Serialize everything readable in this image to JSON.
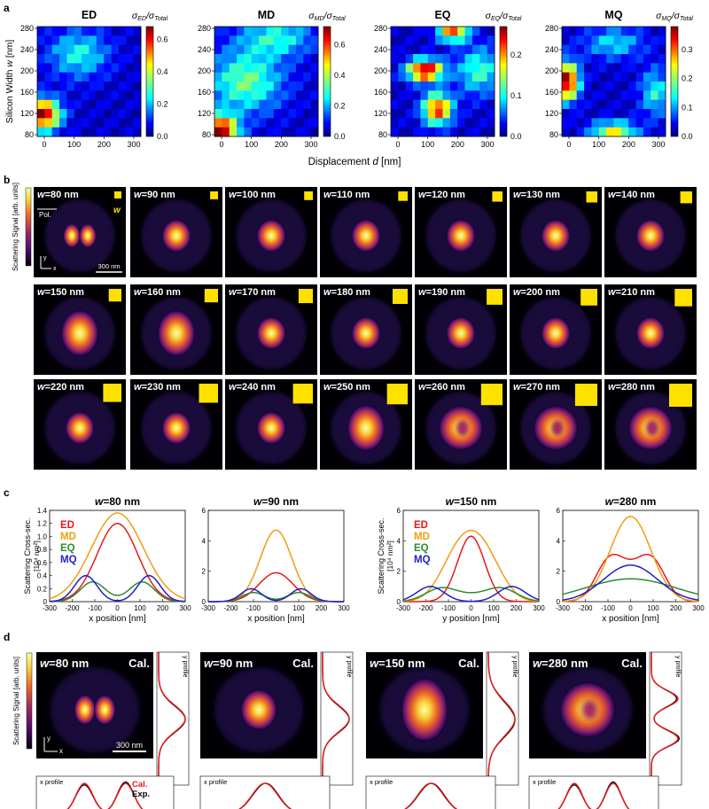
{
  "panel_labels": [
    "a",
    "b",
    "c",
    "d"
  ],
  "cmap": [
    "#00007f",
    "#0000ff",
    "#007fff",
    "#00ffff",
    "#7fff7f",
    "#ffff00",
    "#ff7f00",
    "#ff0000",
    "#7f0000"
  ],
  "inferno": [
    "#000004",
    "#1b0c41",
    "#4a0c6b",
    "#781c6d",
    "#a52c60",
    "#cf4446",
    "#ed6925",
    "#fb9b06",
    "#f7d13d",
    "#fcffa4"
  ],
  "chart_data": [
    {
      "type": "heatmap",
      "panel": "a",
      "title": "ED",
      "colorbar_label_main": "σ",
      "colorbar_label_sub": "ED",
      "colorbar_label_tail": "/σ",
      "colorbar_label_tail_sub": "Total",
      "colorbar_ticks": [
        "0.6",
        "0.4",
        "0.2",
        "0.0"
      ],
      "colorbar_tick_values": [
        0.6,
        0.4,
        0.2,
        0.0
      ],
      "vmax": 0.68,
      "x_ticks": [
        "0",
        "100",
        "200",
        "300"
      ],
      "y_ticks": [
        "80",
        "120",
        "160",
        "200",
        "240",
        "280"
      ],
      "peaks": [
        {
          "d": 0.05,
          "w": 0.2,
          "amp": 1.0,
          "sx": 0.12,
          "sy": 0.1
        },
        {
          "d": 0.4,
          "w": 0.75,
          "amp": 0.35,
          "sx": 0.2,
          "sy": 0.15
        }
      ]
    },
    {
      "type": "heatmap",
      "panel": "a",
      "title": "MD",
      "colorbar_label_main": "σ",
      "colorbar_label_sub": "MD",
      "colorbar_label_tail": "/σ",
      "colorbar_label_tail_sub": "Total",
      "colorbar_ticks": [
        "0.6",
        "0.4",
        "0.2",
        "0.0"
      ],
      "colorbar_tick_values": [
        0.6,
        0.4,
        0.2,
        0.0
      ],
      "vmax": 0.72,
      "x_ticks": [
        "0",
        "100",
        "200",
        "300"
      ],
      "y_ticks": [
        "80",
        "120",
        "160",
        "200",
        "240",
        "280"
      ],
      "peaks": [
        {
          "d": 0.05,
          "w": 0.05,
          "amp": 1.0,
          "sx": 0.12,
          "sy": 0.1
        },
        {
          "d": 0.3,
          "w": 0.5,
          "amp": 0.45,
          "sx": 0.25,
          "sy": 0.2
        },
        {
          "d": 0.6,
          "w": 0.9,
          "amp": 0.35,
          "sx": 0.25,
          "sy": 0.12
        }
      ]
    },
    {
      "type": "heatmap",
      "panel": "a",
      "title": "EQ",
      "colorbar_label_main": "σ",
      "colorbar_label_sub": "EQ",
      "colorbar_label_tail": "/σ",
      "colorbar_label_tail_sub": "Total",
      "colorbar_ticks": [
        "0.2",
        "0.1",
        "0.0"
      ],
      "colorbar_tick_values": [
        0.2,
        0.1,
        0.0
      ],
      "vmax": 0.27,
      "x_ticks": [
        "0",
        "100",
        "200",
        "300"
      ],
      "y_ticks": [
        "80",
        "120",
        "160",
        "200",
        "240",
        "280"
      ],
      "peaks": [
        {
          "d": 0.33,
          "w": 0.6,
          "amp": 1.0,
          "sx": 0.12,
          "sy": 0.07
        },
        {
          "d": 0.45,
          "w": 0.25,
          "amp": 0.85,
          "sx": 0.1,
          "sy": 0.1
        },
        {
          "d": 0.6,
          "w": 0.95,
          "amp": 0.8,
          "sx": 0.1,
          "sy": 0.06
        },
        {
          "d": 0.85,
          "w": 0.6,
          "amp": 0.4,
          "sx": 0.15,
          "sy": 0.15
        }
      ]
    },
    {
      "type": "heatmap",
      "panel": "a",
      "title": "MQ",
      "colorbar_label_main": "σ",
      "colorbar_label_sub": "MQ",
      "colorbar_label_tail": "/σ",
      "colorbar_label_tail_sub": "Total",
      "colorbar_ticks": [
        "0.3",
        "0.2",
        "0.1",
        "0.0"
      ],
      "colorbar_tick_values": [
        0.3,
        0.2,
        0.1,
        0.0
      ],
      "vmax": 0.38,
      "x_ticks": [
        "0",
        "100",
        "200",
        "300"
      ],
      "y_ticks": [
        "80",
        "120",
        "160",
        "200",
        "240",
        "280"
      ],
      "peaks": [
        {
          "d": 0.05,
          "w": 0.5,
          "amp": 1.0,
          "sx": 0.08,
          "sy": 0.12
        },
        {
          "d": 0.5,
          "w": 0.05,
          "amp": 0.6,
          "sx": 0.15,
          "sy": 0.06
        },
        {
          "d": 0.9,
          "w": 0.4,
          "amp": 0.35,
          "sx": 0.1,
          "sy": 0.15
        },
        {
          "d": 0.5,
          "w": 0.85,
          "amp": 0.3,
          "sx": 0.2,
          "sy": 0.1
        }
      ]
    }
  ],
  "panel_a": {
    "ylabel_main": "Silicon Width ",
    "ylabel_var": "w",
    "ylabel_unit": " [nm]",
    "xlabel_main": "Displacement ",
    "xlabel_var": "d",
    "xlabel_unit": " [nm]"
  },
  "panel_b": {
    "colorbar_label": "Scattering Signal [arb. units]",
    "pol_label": "Pol.",
    "w_label": "w",
    "axis_y": "y",
    "axis_x": "x",
    "scale_label": "300 nm",
    "w_prefix": "w",
    "tiles": [
      {
        "w": "=80 nm",
        "type": "dimer"
      },
      {
        "w": "=90 nm",
        "type": "spot"
      },
      {
        "w": "=100 nm",
        "type": "spot"
      },
      {
        "w": "=110 nm",
        "type": "spot"
      },
      {
        "w": "=120 nm",
        "type": "spot"
      },
      {
        "w": "=130 nm",
        "type": "spot"
      },
      {
        "w": "=140 nm",
        "type": "spot"
      },
      {
        "w": "=150 nm",
        "type": "big"
      },
      {
        "w": "=160 nm",
        "type": "big"
      },
      {
        "w": "=170 nm",
        "type": "spot"
      },
      {
        "w": "=180 nm",
        "type": "spot"
      },
      {
        "w": "=190 nm",
        "type": "spot"
      },
      {
        "w": "=200 nm",
        "type": "spot"
      },
      {
        "w": "=210 nm",
        "type": "spot"
      },
      {
        "w": "=220 nm",
        "type": "spot"
      },
      {
        "w": "=230 nm",
        "type": "spot"
      },
      {
        "w": "=240 nm",
        "type": "spot"
      },
      {
        "w": "=250 nm",
        "type": "big"
      },
      {
        "w": "=260 nm",
        "type": "ring"
      },
      {
        "w": "=270 nm",
        "type": "ring"
      },
      {
        "w": "=280 nm",
        "type": "ring"
      }
    ]
  },
  "panel_c": {
    "ylabel": "Scattering Cross-sec.",
    "yunit": "[10⁴ nm²]",
    "plots": [
      {
        "title_var": "w",
        "title_rest": "=80 nm",
        "xlabel": "x position [nm]",
        "ymax": 1.4,
        "yticks": [
          "1.4",
          "1.2",
          "1.0",
          "0.8",
          "0.6",
          "0.4",
          "0.2",
          "0"
        ],
        "ytick_values": [
          1.4,
          1.2,
          1.0,
          0.8,
          0.6,
          0.4,
          0.2,
          0
        ],
        "show_legend": true,
        "series": [
          {
            "name": "ED",
            "color": "#e41a1c",
            "shape": "gauss",
            "a": 1.2,
            "s": 90
          },
          {
            "name": "MD",
            "color": "#f39c12",
            "shape": "gauss",
            "a": 1.36,
            "s": 115
          },
          {
            "name": "EQ",
            "color": "#2e8b2e",
            "shape": "dbl",
            "a": 0.3,
            "c": 110,
            "s": 55,
            "b": 0.05
          },
          {
            "name": "MQ",
            "color": "#1f1fcc",
            "shape": "dbl",
            "a": 0.4,
            "c": 140,
            "s": 50,
            "b": 0
          }
        ]
      },
      {
        "title_var": "w",
        "title_rest": "=90 nm",
        "xlabel": "x position [nm]",
        "ymax": 6,
        "yticks": [
          "6",
          "4",
          "2",
          "0"
        ],
        "ytick_values": [
          6,
          4,
          2,
          0
        ],
        "show_legend": false,
        "series": [
          {
            "name": "ED",
            "color": "#e41a1c",
            "shape": "gauss",
            "a": 1.9,
            "s": 75
          },
          {
            "name": "MD",
            "color": "#f39c12",
            "shape": "gauss",
            "a": 4.7,
            "s": 70
          },
          {
            "name": "EQ",
            "color": "#2e8b2e",
            "shape": "dbl",
            "a": 0.6,
            "c": 100,
            "s": 50,
            "b": 0
          },
          {
            "name": "MQ",
            "color": "#1f1fcc",
            "shape": "dbl",
            "a": 0.85,
            "c": 110,
            "s": 45,
            "b": 0
          }
        ]
      },
      {
        "title_var": "w",
        "title_rest": "=150 nm",
        "xlabel": "y position [nm]",
        "ymax": 6,
        "yticks": [
          "6",
          "4",
          "2",
          "0"
        ],
        "ytick_values": [
          6,
          4,
          2,
          0
        ],
        "show_legend": true,
        "series": [
          {
            "name": "ED",
            "color": "#e41a1c",
            "shape": "gauss",
            "a": 4.3,
            "s": 60
          },
          {
            "name": "MD",
            "color": "#f39c12",
            "shape": "dbl",
            "a": 2.8,
            "c": 65,
            "s": 75,
            "b": 0.3
          },
          {
            "name": "EQ",
            "color": "#2e8b2e",
            "shape": "dbl",
            "a": 0.9,
            "c": 130,
            "s": 70,
            "b": 0.3
          },
          {
            "name": "MQ",
            "color": "#1f1fcc",
            "shape": "dbl",
            "a": 1.0,
            "c": 180,
            "s": 60,
            "b": 0
          }
        ]
      },
      {
        "title_var": "w",
        "title_rest": "=280 nm",
        "xlabel": "x position [nm]",
        "ymax": 6,
        "yticks": [
          "6",
          "4",
          "2",
          "0"
        ],
        "ytick_values": [
          6,
          4,
          2,
          0
        ],
        "show_legend": false,
        "series": [
          {
            "name": "ED",
            "color": "#e41a1c",
            "shape": "dbl",
            "a": 2.6,
            "c": 95,
            "s": 60,
            "b": 0.5
          },
          {
            "name": "MD",
            "color": "#f39c12",
            "shape": "gauss",
            "a": 5.6,
            "s": 90
          },
          {
            "name": "EQ",
            "color": "#2e8b2e",
            "shape": "gauss",
            "a": 1.5,
            "s": 200
          },
          {
            "name": "MQ",
            "color": "#1f1fcc",
            "shape": "gauss",
            "a": 2.4,
            "s": 120
          }
        ]
      }
    ],
    "xticks": [
      "-300",
      "-200",
      "-100",
      "0",
      "100",
      "200",
      "300"
    ],
    "xtick_values": [
      -300,
      -200,
      -100,
      0,
      100,
      200,
      300
    ]
  },
  "panel_d": {
    "colorbar_label": "Scattering Signal [arb. units]",
    "cal": "Cal.",
    "y_profile": "y profile",
    "x_profile": "x profile",
    "scale_label": "300 nm",
    "axis_y": "y",
    "axis_x": "x",
    "legend_cal": "Cal.",
    "legend_exp": "Exp.",
    "cal_color": "#e41a1c",
    "exp_color": "#000000",
    "tiles": [
      {
        "w_var": "w",
        "w_rest": "=80 nm",
        "type": "dimer",
        "xprof": "dbl",
        "yprof": "gauss"
      },
      {
        "w_var": "w",
        "w_rest": "=90 nm",
        "type": "spot",
        "xprof": "gauss",
        "yprof": "gauss"
      },
      {
        "w_var": "w",
        "w_rest": "=150 nm",
        "type": "tall",
        "xprof": "gauss",
        "yprof": "wide"
      },
      {
        "w_var": "w",
        "w_rest": "=280 nm",
        "type": "ring",
        "xprof": "dbl",
        "yprof": "dbl"
      }
    ]
  }
}
